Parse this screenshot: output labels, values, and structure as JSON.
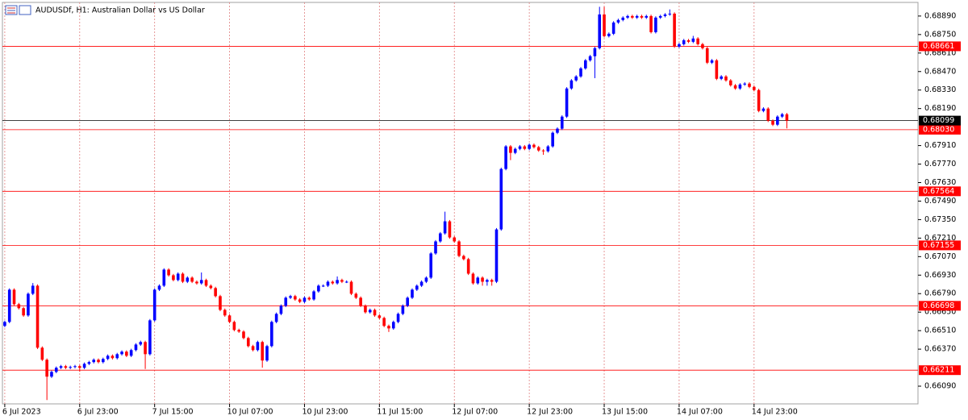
{
  "chart_data": {
    "type": "candlestick",
    "title": "AUDUSDf, H1:  Australian Dollar vs US Dollar",
    "up_color": "#0000ff",
    "down_color": "#ff0000",
    "level_color": "#ff0000",
    "last_color": "#000000",
    "xgrid": true,
    "xlim": [
      -0.5,
      195
    ],
    "ylim": [
      0.65956,
      0.68993
    ],
    "xticks": [
      {
        "value": 0,
        "label": "6 Jul 2023"
      },
      {
        "value": 16,
        "label": "6 Jul 23:00"
      },
      {
        "value": 32,
        "label": "7 Jul 15:00"
      },
      {
        "value": 48,
        "label": "10 Jul 07:00"
      },
      {
        "value": 64,
        "label": "10 Jul 23:00"
      },
      {
        "value": 80,
        "label": "11 Jul 15:00"
      },
      {
        "value": 96,
        "label": "12 Jul 07:00"
      },
      {
        "value": 112,
        "label": "12 Jul 23:00"
      },
      {
        "value": 128,
        "label": "13 Jul 15:00"
      },
      {
        "value": 144,
        "label": "14 Jul 07:00"
      },
      {
        "value": 160,
        "label": "14 Jul 23:00"
      }
    ],
    "yticks": [
      {
        "value": 0.6889,
        "label": "0.68890"
      },
      {
        "value": 0.6875,
        "label": "0.68750"
      },
      {
        "value": 0.6861,
        "label": "0.68610"
      },
      {
        "value": 0.6847,
        "label": "0.68470"
      },
      {
        "value": 0.6833,
        "label": "0.68330"
      },
      {
        "value": 0.6819,
        "label": "0.68190"
      },
      {
        "value": 0.6791,
        "label": "0.67910"
      },
      {
        "value": 0.6777,
        "label": "0.67770"
      },
      {
        "value": 0.6763,
        "label": "0.67630"
      },
      {
        "value": 0.6749,
        "label": "0.67490"
      },
      {
        "value": 0.6735,
        "label": "0.67350"
      },
      {
        "value": 0.6721,
        "label": "0.67210"
      },
      {
        "value": 0.6707,
        "label": "0.67070"
      },
      {
        "value": 0.6693,
        "label": "0.66930"
      },
      {
        "value": 0.6679,
        "label": "0.66790"
      },
      {
        "value": 0.6665,
        "label": "0.66650"
      },
      {
        "value": 0.6651,
        "label": "0.66510"
      },
      {
        "value": 0.6637,
        "label": "0.66370"
      },
      {
        "value": 0.6609,
        "label": "0.66090"
      }
    ],
    "levels": [
      0.68661,
      {
        "value": 0.6803,
        "label": "0.68030"
      },
      0.67564,
      0.67155,
      0.66698,
      0.66211
    ],
    "last_price": 0.68099,
    "candles": [
      [
        0.66546,
        0.66586,
        0.66536,
        0.66576
      ],
      [
        0.66576,
        0.6683,
        0.66566,
        0.6682
      ],
      [
        0.6682,
        0.6683,
        0.667,
        0.6671
      ],
      [
        0.6671,
        0.6672,
        0.6667,
        0.6668
      ],
      [
        0.6668,
        0.6669,
        0.66615,
        0.66625
      ],
      [
        0.66625,
        0.66799,
        0.66615,
        0.66789
      ],
      [
        0.66789,
        0.6687,
        0.66779,
        0.6685
      ],
      [
        0.6685,
        0.6686,
        0.66371,
        0.66381
      ],
      [
        0.66381,
        0.66391,
        0.6628,
        0.6629
      ],
      [
        0.6629,
        0.663,
        0.65985,
        0.66162
      ],
      [
        0.66162,
        0.66208,
        0.66152,
        0.66198
      ],
      [
        0.66198,
        0.66239,
        0.66188,
        0.66229
      ],
      [
        0.66229,
        0.66251,
        0.66219,
        0.66241
      ],
      [
        0.66241,
        0.66251,
        0.66219,
        0.66229
      ],
      [
        0.66229,
        0.66245,
        0.66219,
        0.66235
      ],
      [
        0.66235,
        0.66251,
        0.66225,
        0.66241
      ],
      [
        0.66241,
        0.66251,
        0.662,
        0.66229
      ],
      [
        0.66229,
        0.66269,
        0.66219,
        0.66259
      ],
      [
        0.66259,
        0.66282,
        0.66249,
        0.66272
      ],
      [
        0.66272,
        0.663,
        0.66262,
        0.6629
      ],
      [
        0.6629,
        0.663,
        0.66262,
        0.66272
      ],
      [
        0.66272,
        0.66306,
        0.66262,
        0.66296
      ],
      [
        0.66296,
        0.6633,
        0.66286,
        0.6632
      ],
      [
        0.6632,
        0.6633,
        0.66292,
        0.66302
      ],
      [
        0.66302,
        0.66342,
        0.66292,
        0.66332
      ],
      [
        0.66332,
        0.66361,
        0.66322,
        0.66351
      ],
      [
        0.66351,
        0.66361,
        0.6631,
        0.6632
      ],
      [
        0.6632,
        0.66373,
        0.6631,
        0.66363
      ],
      [
        0.66363,
        0.66415,
        0.66353,
        0.66405
      ],
      [
        0.66405,
        0.66434,
        0.66395,
        0.66424
      ],
      [
        0.66424,
        0.66434,
        0.6622,
        0.66332
      ],
      [
        0.66332,
        0.66598,
        0.66322,
        0.66588
      ],
      [
        0.66588,
        0.6683,
        0.66578,
        0.6682
      ],
      [
        0.6682,
        0.6686,
        0.6681,
        0.6685
      ],
      [
        0.6685,
        0.66982,
        0.6684,
        0.66972
      ],
      [
        0.66972,
        0.66982,
        0.66919,
        0.66929
      ],
      [
        0.66929,
        0.66939,
        0.66883,
        0.66893
      ],
      [
        0.66893,
        0.66951,
        0.66883,
        0.66941
      ],
      [
        0.66941,
        0.66951,
        0.6687,
        0.6688
      ],
      [
        0.6688,
        0.66921,
        0.6687,
        0.66911
      ],
      [
        0.66911,
        0.66921,
        0.6687,
        0.6688
      ],
      [
        0.6688,
        0.6689,
        0.66858,
        0.66868
      ],
      [
        0.66868,
        0.6695,
        0.66858,
        0.66893
      ],
      [
        0.66893,
        0.66903,
        0.6684,
        0.6685
      ],
      [
        0.6685,
        0.6686,
        0.66822,
        0.66832
      ],
      [
        0.66832,
        0.66842,
        0.66761,
        0.66771
      ],
      [
        0.66771,
        0.66781,
        0.66657,
        0.66667
      ],
      [
        0.66667,
        0.66677,
        0.66615,
        0.66625
      ],
      [
        0.66625,
        0.66635,
        0.66566,
        0.66576
      ],
      [
        0.66576,
        0.66586,
        0.66505,
        0.66515
      ],
      [
        0.66515,
        0.66525,
        0.66493,
        0.66503
      ],
      [
        0.66503,
        0.66513,
        0.66444,
        0.66454
      ],
      [
        0.66454,
        0.66464,
        0.66383,
        0.66393
      ],
      [
        0.66393,
        0.66403,
        0.66353,
        0.66363
      ],
      [
        0.66363,
        0.66434,
        0.66353,
        0.66424
      ],
      [
        0.66424,
        0.66434,
        0.6623,
        0.66284
      ],
      [
        0.66284,
        0.66403,
        0.66274,
        0.66393
      ],
      [
        0.66393,
        0.66586,
        0.66383,
        0.66576
      ],
      [
        0.66576,
        0.66647,
        0.66566,
        0.66637
      ],
      [
        0.66637,
        0.66708,
        0.66627,
        0.66698
      ],
      [
        0.66698,
        0.66769,
        0.66688,
        0.66759
      ],
      [
        0.66759,
        0.66781,
        0.66749,
        0.66771
      ],
      [
        0.66771,
        0.66781,
        0.66736,
        0.66746
      ],
      [
        0.66746,
        0.66756,
        0.66718,
        0.66728
      ],
      [
        0.66728,
        0.66769,
        0.66718,
        0.66759
      ],
      [
        0.66759,
        0.66769,
        0.66736,
        0.66746
      ],
      [
        0.66746,
        0.66817,
        0.66736,
        0.66807
      ],
      [
        0.66807,
        0.6686,
        0.66797,
        0.6685
      ],
      [
        0.6685,
        0.6686,
        0.6684,
        0.6685
      ],
      [
        0.6685,
        0.6689,
        0.6684,
        0.6688
      ],
      [
        0.6688,
        0.6689,
        0.66858,
        0.66868
      ],
      [
        0.66868,
        0.6692,
        0.66858,
        0.66893
      ],
      [
        0.66893,
        0.66903,
        0.6687,
        0.6688
      ],
      [
        0.6688,
        0.6689,
        0.6687,
        0.6688
      ],
      [
        0.6688,
        0.6689,
        0.66779,
        0.66789
      ],
      [
        0.66789,
        0.66799,
        0.66749,
        0.66759
      ],
      [
        0.66759,
        0.66769,
        0.66688,
        0.66698
      ],
      [
        0.66698,
        0.66708,
        0.66639,
        0.66649
      ],
      [
        0.66649,
        0.66677,
        0.66639,
        0.66667
      ],
      [
        0.66667,
        0.66677,
        0.66615,
        0.66625
      ],
      [
        0.66625,
        0.66635,
        0.66596,
        0.66606
      ],
      [
        0.66606,
        0.66616,
        0.66536,
        0.66546
      ],
      [
        0.66546,
        0.66556,
        0.665,
        0.66527
      ],
      [
        0.66527,
        0.66586,
        0.66517,
        0.66576
      ],
      [
        0.66576,
        0.66647,
        0.66566,
        0.66637
      ],
      [
        0.66637,
        0.66708,
        0.66627,
        0.66698
      ],
      [
        0.66698,
        0.66769,
        0.66688,
        0.66759
      ],
      [
        0.66759,
        0.6683,
        0.66749,
        0.6682
      ],
      [
        0.6682,
        0.6686,
        0.6681,
        0.6685
      ],
      [
        0.6685,
        0.6689,
        0.6684,
        0.6688
      ],
      [
        0.6688,
        0.66921,
        0.6687,
        0.66911
      ],
      [
        0.66911,
        0.67104,
        0.66901,
        0.67094
      ],
      [
        0.67094,
        0.67195,
        0.67084,
        0.67185
      ],
      [
        0.67185,
        0.67256,
        0.67175,
        0.67246
      ],
      [
        0.67246,
        0.6741,
        0.67236,
        0.67337
      ],
      [
        0.67337,
        0.67347,
        0.67205,
        0.67215
      ],
      [
        0.67215,
        0.67225,
        0.67175,
        0.67185
      ],
      [
        0.67185,
        0.67195,
        0.67065,
        0.67075
      ],
      [
        0.67075,
        0.67085,
        0.67041,
        0.67051
      ],
      [
        0.67051,
        0.67061,
        0.66931,
        0.66941
      ],
      [
        0.66941,
        0.66951,
        0.66858,
        0.66868
      ],
      [
        0.66868,
        0.66921,
        0.66858,
        0.66911
      ],
      [
        0.66911,
        0.66921,
        0.6685,
        0.6688
      ],
      [
        0.6688,
        0.66903,
        0.6685,
        0.66893
      ],
      [
        0.66893,
        0.66903,
        0.6685,
        0.6688
      ],
      [
        0.6688,
        0.67286,
        0.6687,
        0.67276
      ],
      [
        0.67276,
        0.67743,
        0.67266,
        0.67733
      ],
      [
        0.67733,
        0.67914,
        0.67723,
        0.67904
      ],
      [
        0.67904,
        0.67914,
        0.678,
        0.67855
      ],
      [
        0.67855,
        0.67895,
        0.67845,
        0.67885
      ],
      [
        0.67885,
        0.67914,
        0.67875,
        0.67904
      ],
      [
        0.67904,
        0.67914,
        0.67875,
        0.67885
      ],
      [
        0.67885,
        0.67926,
        0.67875,
        0.67916
      ],
      [
        0.67916,
        0.67926,
        0.67888,
        0.67898
      ],
      [
        0.67898,
        0.67908,
        0.67863,
        0.67873
      ],
      [
        0.67873,
        0.67883,
        0.6784,
        0.67867
      ],
      [
        0.67867,
        0.67914,
        0.67857,
        0.67904
      ],
      [
        0.67904,
        0.68017,
        0.67894,
        0.68007
      ],
      [
        0.68007,
        0.68048,
        0.67997,
        0.68038
      ],
      [
        0.68038,
        0.68139,
        0.68028,
        0.68129
      ],
      [
        0.68129,
        0.68352,
        0.68119,
        0.68342
      ],
      [
        0.68342,
        0.68413,
        0.68332,
        0.68403
      ],
      [
        0.68403,
        0.68443,
        0.68393,
        0.68433
      ],
      [
        0.68433,
        0.68504,
        0.68423,
        0.68494
      ],
      [
        0.68494,
        0.68565,
        0.68484,
        0.68555
      ],
      [
        0.68555,
        0.68596,
        0.68545,
        0.68586
      ],
      [
        0.68586,
        0.68657,
        0.6842,
        0.68647
      ],
      [
        0.68647,
        0.6896,
        0.68637,
        0.68902
      ],
      [
        0.68902,
        0.6896,
        0.68728,
        0.68738
      ],
      [
        0.68738,
        0.68766,
        0.68728,
        0.68756
      ],
      [
        0.68756,
        0.68851,
        0.68746,
        0.68841
      ],
      [
        0.68841,
        0.6887,
        0.68831,
        0.6886
      ],
      [
        0.6886,
        0.68888,
        0.6885,
        0.68878
      ],
      [
        0.68878,
        0.689,
        0.68868,
        0.6889
      ],
      [
        0.6889,
        0.689,
        0.68868,
        0.68878
      ],
      [
        0.68878,
        0.689,
        0.68868,
        0.6889
      ],
      [
        0.6889,
        0.689,
        0.68868,
        0.68878
      ],
      [
        0.68878,
        0.689,
        0.68868,
        0.6889
      ],
      [
        0.6889,
        0.689,
        0.68758,
        0.68768
      ],
      [
        0.68768,
        0.68888,
        0.68758,
        0.68878
      ],
      [
        0.68878,
        0.689,
        0.68868,
        0.6889
      ],
      [
        0.6889,
        0.68912,
        0.6888,
        0.68902
      ],
      [
        0.68902,
        0.6894,
        0.68892,
        0.68908
      ],
      [
        0.68908,
        0.68918,
        0.68649,
        0.68659
      ],
      [
        0.68659,
        0.68687,
        0.68649,
        0.68677
      ],
      [
        0.68677,
        0.68717,
        0.68667,
        0.68707
      ],
      [
        0.68707,
        0.68717,
        0.68685,
        0.68695
      ],
      [
        0.68695,
        0.6874,
        0.68685,
        0.6872
      ],
      [
        0.6872,
        0.6873,
        0.68667,
        0.68677
      ],
      [
        0.68677,
        0.68687,
        0.68637,
        0.68647
      ],
      [
        0.68647,
        0.68657,
        0.68527,
        0.68537
      ],
      [
        0.68537,
        0.68565,
        0.68527,
        0.68555
      ],
      [
        0.68555,
        0.68565,
        0.68405,
        0.68415
      ],
      [
        0.68415,
        0.68443,
        0.68405,
        0.68433
      ],
      [
        0.68433,
        0.68443,
        0.68393,
        0.68403
      ],
      [
        0.68403,
        0.68413,
        0.68356,
        0.68366
      ],
      [
        0.68366,
        0.68376,
        0.68332,
        0.68342
      ],
      [
        0.68342,
        0.68382,
        0.68332,
        0.68372
      ],
      [
        0.68372,
        0.68389,
        0.68362,
        0.68379
      ],
      [
        0.68379,
        0.68389,
        0.68344,
        0.68354
      ],
      [
        0.68354,
        0.68364,
        0.6832,
        0.6833
      ],
      [
        0.6833,
        0.6834,
        0.68162,
        0.68172
      ],
      [
        0.68172,
        0.682,
        0.68162,
        0.6819
      ],
      [
        0.6819,
        0.682,
        0.68088,
        0.68098
      ],
      [
        0.68098,
        0.68108,
        0.68058,
        0.68068
      ],
      [
        0.68068,
        0.68139,
        0.68058,
        0.68129
      ],
      [
        0.68129,
        0.68157,
        0.68119,
        0.68147
      ],
      [
        0.68147,
        0.68157,
        0.6804,
        0.68098
      ]
    ]
  }
}
